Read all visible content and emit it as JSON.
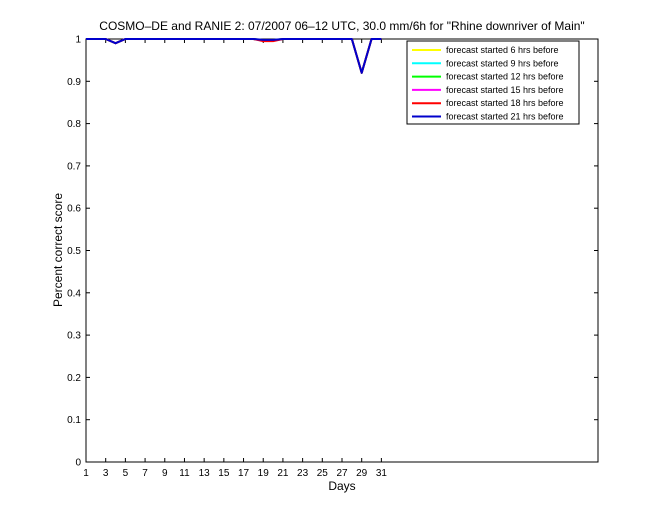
{
  "chart_data": {
    "type": "line",
    "title": "COSMO–DE and RANIE 2: 07/2007 06–12 UTC, 30.0 mm/6h for \"Rhine downriver of Main\"",
    "xlabel": "Days",
    "ylabel": "Percent correct score",
    "xlim": [
      1,
      53
    ],
    "ylim": [
      0,
      1
    ],
    "xticks": [
      "1",
      "3",
      "5",
      "7",
      "9",
      "11",
      "13",
      "15",
      "17",
      "19",
      "21",
      "23",
      "25",
      "27",
      "29",
      "31"
    ],
    "yticks": [
      "0",
      "0.1",
      "0.2",
      "0.3",
      "0.4",
      "0.5",
      "0.6",
      "0.7",
      "0.8",
      "0.9",
      "1"
    ],
    "legend_position": "top-right",
    "x": [
      1,
      2,
      3,
      4,
      5,
      6,
      7,
      8,
      9,
      10,
      11,
      12,
      13,
      14,
      15,
      16,
      17,
      18,
      19,
      20,
      21,
      22,
      23,
      24,
      25,
      26,
      27,
      28,
      29,
      30,
      31
    ],
    "series": [
      {
        "name": "forecast started 6 hrs before",
        "color": "#ffff00",
        "values": [
          1,
          1,
          1,
          0.99,
          1,
          1,
          1,
          1,
          1,
          1,
          1,
          1,
          1,
          1,
          1,
          1,
          1,
          1,
          0.997,
          0.997,
          1,
          1,
          1,
          1,
          1,
          1,
          1,
          1,
          0.92,
          1,
          1
        ]
      },
      {
        "name": "forecast started 9 hrs before",
        "color": "#00ffff",
        "values": [
          1,
          1,
          1,
          0.99,
          1,
          1,
          1,
          1,
          1,
          1,
          1,
          1,
          1,
          1,
          1,
          1,
          1,
          1,
          0.997,
          0.997,
          1,
          1,
          1,
          1,
          1,
          1,
          1,
          1,
          0.92,
          1,
          1
        ]
      },
      {
        "name": "forecast started 12 hrs before",
        "color": "#00ff00",
        "values": [
          1,
          1,
          1,
          0.99,
          1,
          1,
          1,
          1,
          1,
          1,
          1,
          1,
          1,
          1,
          1,
          1,
          1,
          1,
          0.997,
          0.997,
          1,
          1,
          1,
          1,
          1,
          1,
          1,
          1,
          0.92,
          1,
          1
        ]
      },
      {
        "name": "forecast started 15 hrs before",
        "color": "#ff00ff",
        "values": [
          1,
          1,
          1,
          0.99,
          1,
          1,
          1,
          1,
          1,
          1,
          1,
          1,
          1,
          1,
          1,
          1,
          1,
          1,
          0.996,
          0.996,
          1,
          1,
          1,
          1,
          1,
          1,
          1,
          1,
          0.92,
          1,
          1
        ]
      },
      {
        "name": "forecast started 18 hrs before",
        "color": "#ff0000",
        "values": [
          1,
          1,
          1,
          0.99,
          1,
          1,
          1,
          1,
          1,
          1,
          1,
          1,
          1,
          1,
          1,
          1,
          1,
          1,
          0.995,
          0.995,
          1,
          1,
          1,
          1,
          1,
          1,
          1,
          1,
          0.92,
          1,
          1
        ]
      },
      {
        "name": "forecast started 21 hrs before",
        "color": "#0000cc",
        "values": [
          1,
          1,
          1,
          0.99,
          1,
          1,
          1,
          1,
          1,
          1,
          1,
          1,
          1,
          1,
          1,
          1,
          1,
          1,
          0.998,
          0.998,
          1,
          1,
          1,
          1,
          1,
          1,
          1,
          1,
          0.92,
          1,
          1
        ]
      }
    ]
  }
}
